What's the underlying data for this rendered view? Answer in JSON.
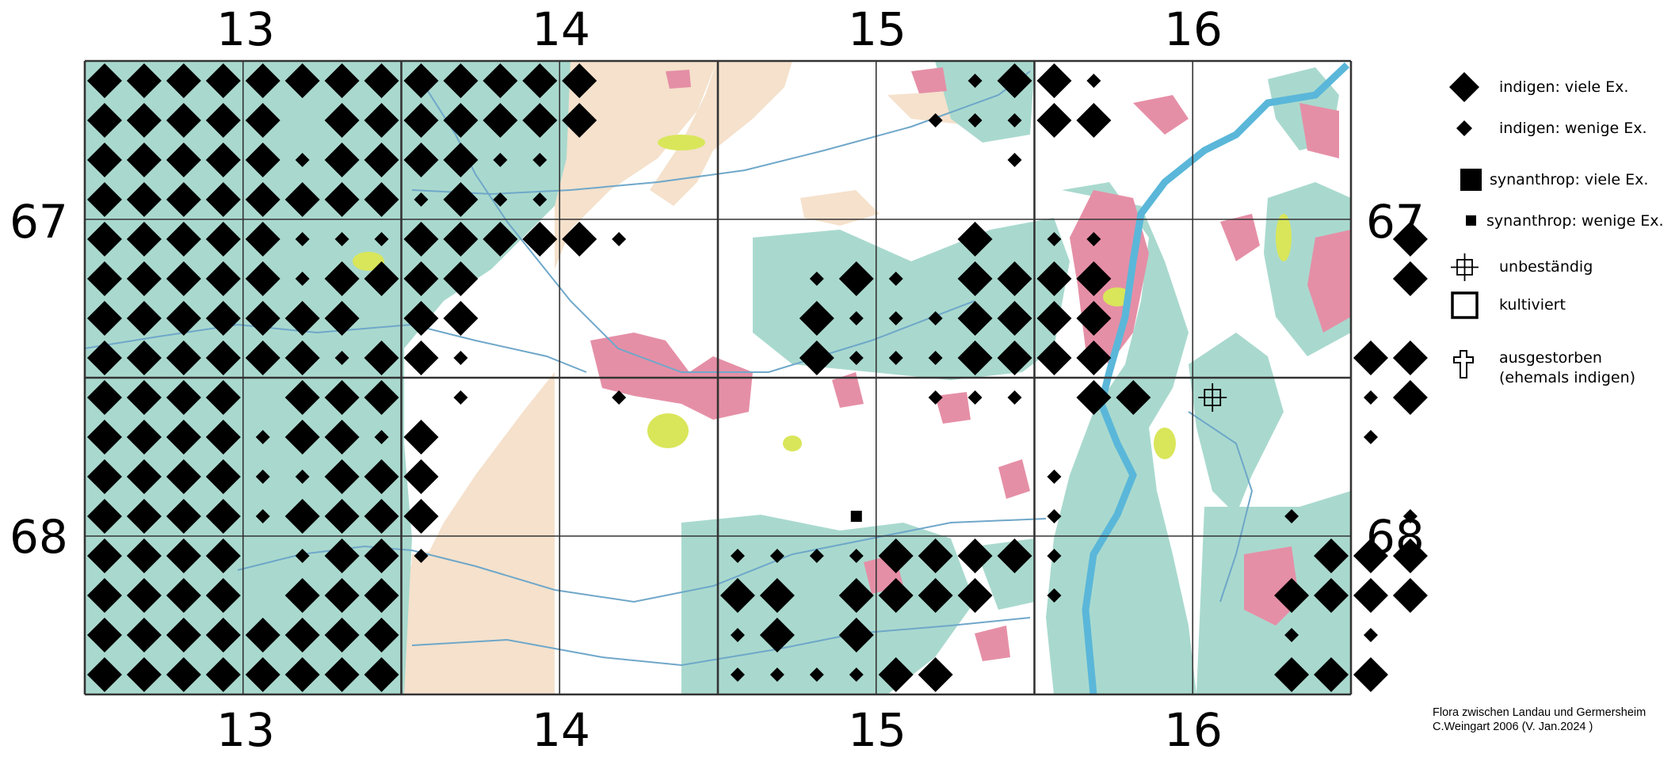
{
  "map": {
    "columns": [
      "13",
      "14",
      "15",
      "16"
    ],
    "rows": [
      "67",
      "68"
    ],
    "colors": {
      "forest": "#a9d9ce",
      "settlement": "#e58fa6",
      "fields": "#f5e1cc",
      "meadow": "#d9e65a",
      "water_area": "#b8e1d6",
      "river": "#5ab7d9",
      "grid": "#333333",
      "symbol": "#000000"
    },
    "occurrences": [
      {
        "type": "diamond-large",
        "cells": [
          [
            0,
            0
          ],
          [
            0,
            1
          ],
          [
            0,
            2
          ],
          [
            0,
            3
          ],
          [
            0,
            4
          ],
          [
            0,
            5
          ],
          [
            0,
            6
          ],
          [
            0,
            7
          ],
          [
            1,
            0
          ],
          [
            1,
            1
          ],
          [
            1,
            2
          ],
          [
            1,
            3
          ],
          [
            1,
            4
          ],
          [
            1,
            6
          ],
          [
            1,
            7
          ],
          [
            2,
            0
          ],
          [
            2,
            1
          ],
          [
            2,
            2
          ],
          [
            2,
            3
          ],
          [
            2,
            4
          ],
          [
            2,
            6
          ],
          [
            2,
            7
          ],
          [
            3,
            0
          ],
          [
            3,
            1
          ],
          [
            3,
            2
          ],
          [
            3,
            3
          ],
          [
            3,
            4
          ],
          [
            3,
            5
          ],
          [
            3,
            6
          ],
          [
            3,
            7
          ],
          [
            4,
            0
          ],
          [
            4,
            1
          ],
          [
            4,
            2
          ],
          [
            4,
            3
          ],
          [
            4,
            4
          ],
          [
            5,
            0
          ],
          [
            5,
            1
          ],
          [
            5,
            2
          ],
          [
            5,
            3
          ],
          [
            5,
            4
          ],
          [
            5,
            6
          ],
          [
            5,
            7
          ],
          [
            6,
            0
          ],
          [
            6,
            1
          ],
          [
            6,
            2
          ],
          [
            6,
            3
          ],
          [
            6,
            4
          ],
          [
            6,
            5
          ],
          [
            6,
            6
          ],
          [
            7,
            0
          ],
          [
            7,
            1
          ],
          [
            7,
            2
          ],
          [
            7,
            3
          ],
          [
            7,
            4
          ],
          [
            7,
            5
          ],
          [
            7,
            7
          ],
          [
            8,
            0
          ],
          [
            8,
            1
          ],
          [
            8,
            2
          ],
          [
            8,
            3
          ],
          [
            8,
            5
          ],
          [
            8,
            6
          ],
          [
            8,
            7
          ],
          [
            9,
            0
          ],
          [
            9,
            1
          ],
          [
            9,
            2
          ],
          [
            9,
            3
          ],
          [
            9,
            5
          ],
          [
            9,
            6
          ],
          [
            10,
            0
          ],
          [
            10,
            1
          ],
          [
            10,
            2
          ],
          [
            10,
            3
          ],
          [
            10,
            6
          ],
          [
            10,
            7
          ],
          [
            11,
            0
          ],
          [
            11,
            1
          ],
          [
            11,
            2
          ],
          [
            11,
            3
          ],
          [
            11,
            5
          ],
          [
            11,
            6
          ],
          [
            11,
            7
          ],
          [
            12,
            0
          ],
          [
            12,
            1
          ],
          [
            12,
            2
          ],
          [
            12,
            3
          ],
          [
            12,
            6
          ],
          [
            12,
            7
          ],
          [
            13,
            0
          ],
          [
            13,
            1
          ],
          [
            13,
            2
          ],
          [
            13,
            3
          ],
          [
            13,
            5
          ],
          [
            13,
            6
          ],
          [
            13,
            7
          ],
          [
            14,
            0
          ],
          [
            14,
            1
          ],
          [
            14,
            2
          ],
          [
            14,
            3
          ],
          [
            14,
            4
          ],
          [
            14,
            5
          ],
          [
            14,
            6
          ],
          [
            14,
            7
          ],
          [
            15,
            0
          ],
          [
            15,
            1
          ],
          [
            15,
            2
          ],
          [
            15,
            3
          ],
          [
            15,
            4
          ],
          [
            15,
            5
          ],
          [
            15,
            6
          ],
          [
            15,
            7
          ],
          [
            0,
            8
          ],
          [
            0,
            9
          ],
          [
            0,
            10
          ],
          [
            0,
            11
          ],
          [
            0,
            12
          ],
          [
            1,
            8
          ],
          [
            1,
            9
          ],
          [
            1,
            10
          ],
          [
            1,
            11
          ],
          [
            1,
            12
          ],
          [
            2,
            8
          ],
          [
            2,
            9
          ],
          [
            3,
            9
          ],
          [
            4,
            8
          ],
          [
            4,
            9
          ],
          [
            4,
            10
          ],
          [
            4,
            11
          ],
          [
            4,
            12
          ],
          [
            5,
            8
          ],
          [
            5,
            9
          ],
          [
            6,
            8
          ],
          [
            6,
            9
          ],
          [
            7,
            8
          ],
          [
            9,
            8
          ],
          [
            10,
            8
          ],
          [
            11,
            8
          ],
          [
            0,
            23
          ],
          [
            0,
            24
          ],
          [
            1,
            24
          ],
          [
            1,
            25
          ],
          [
            4,
            22
          ],
          [
            4,
            33
          ],
          [
            5,
            19
          ],
          [
            5,
            22
          ],
          [
            5,
            23
          ],
          [
            5,
            24
          ],
          [
            5,
            25
          ],
          [
            5,
            33
          ],
          [
            6,
            18
          ],
          [
            6,
            22
          ],
          [
            6,
            23
          ],
          [
            6,
            24
          ],
          [
            6,
            25
          ],
          [
            7,
            18
          ],
          [
            7,
            22
          ],
          [
            7,
            23
          ],
          [
            7,
            24
          ],
          [
            7,
            25
          ],
          [
            7,
            32
          ],
          [
            7,
            33
          ],
          [
            8,
            25
          ],
          [
            8,
            26
          ],
          [
            8,
            33
          ],
          [
            12,
            20
          ],
          [
            12,
            21
          ],
          [
            12,
            22
          ],
          [
            12,
            23
          ],
          [
            12,
            31
          ],
          [
            12,
            32
          ],
          [
            12,
            33
          ],
          [
            13,
            16
          ],
          [
            13,
            17
          ],
          [
            13,
            19
          ],
          [
            13,
            20
          ],
          [
            13,
            21
          ],
          [
            13,
            22
          ],
          [
            13,
            33
          ],
          [
            13,
            30
          ],
          [
            13,
            31
          ],
          [
            13,
            32
          ],
          [
            14,
            17
          ],
          [
            14,
            19
          ],
          [
            15,
            20
          ],
          [
            15,
            21
          ],
          [
            15,
            30
          ],
          [
            15,
            31
          ],
          [
            15,
            32
          ]
        ]
      },
      {
        "type": "diamond-small",
        "cells": [
          [
            2,
            5
          ],
          [
            3,
            5
          ],
          [
            4,
            5
          ],
          [
            4,
            6
          ],
          [
            4,
            7
          ],
          [
            5,
            5
          ],
          [
            6,
            5
          ],
          [
            7,
            5
          ],
          [
            7,
            6
          ],
          [
            9,
            4
          ],
          [
            9,
            7
          ],
          [
            10,
            4
          ],
          [
            10,
            5
          ],
          [
            11,
            4
          ],
          [
            12,
            5
          ],
          [
            2,
            10
          ],
          [
            2,
            11
          ],
          [
            3,
            8
          ],
          [
            3,
            10
          ],
          [
            3,
            11
          ],
          [
            4,
            13
          ],
          [
            5,
            8
          ],
          [
            6,
            8
          ],
          [
            7,
            9
          ],
          [
            8,
            9
          ],
          [
            8,
            13
          ],
          [
            9,
            8
          ],
          [
            12,
            8
          ],
          [
            0,
            22
          ],
          [
            0,
            25
          ],
          [
            1,
            21
          ],
          [
            1,
            22
          ],
          [
            1,
            23
          ],
          [
            2,
            23
          ],
          [
            4,
            24
          ],
          [
            4,
            25
          ],
          [
            5,
            18
          ],
          [
            5,
            20
          ],
          [
            6,
            20
          ],
          [
            6,
            21
          ],
          [
            6,
            19
          ],
          [
            7,
            19
          ],
          [
            7,
            20
          ],
          [
            7,
            21
          ],
          [
            8,
            21
          ],
          [
            8,
            22
          ],
          [
            8,
            23
          ],
          [
            8,
            32
          ],
          [
            9,
            32
          ],
          [
            10,
            24
          ],
          [
            11,
            24
          ],
          [
            11,
            30
          ],
          [
            11,
            33
          ],
          [
            12,
            16
          ],
          [
            12,
            17
          ],
          [
            12,
            18
          ],
          [
            12,
            19
          ],
          [
            12,
            24
          ],
          [
            13,
            24
          ],
          [
            14,
            16
          ],
          [
            14,
            32
          ],
          [
            14,
            30
          ],
          [
            15,
            16
          ],
          [
            15,
            17
          ],
          [
            15,
            18
          ],
          [
            15,
            19
          ]
        ]
      },
      {
        "type": "square-small",
        "cells": [
          [
            11,
            19
          ]
        ]
      },
      {
        "type": "unbestaendig",
        "cells": [
          [
            8,
            28
          ]
        ]
      }
    ]
  },
  "legend": {
    "items": [
      {
        "symbol": "diamond-large",
        "label": "indigen: viele Ex."
      },
      {
        "symbol": "diamond-small",
        "label": "indigen: wenige Ex."
      },
      {
        "symbol": "square-large",
        "label": "synanthrop: viele Ex."
      },
      {
        "symbol": "square-small",
        "label": "synanthrop: wenige Ex."
      },
      {
        "symbol": "unbestaendig",
        "label": "unbeständig"
      },
      {
        "symbol": "kultiviert",
        "label": "kultiviert"
      },
      {
        "symbol": "cross-outline",
        "label": "ausgestorben",
        "label2": "(ehemals indigen)"
      }
    ]
  },
  "credits": {
    "line1": "Flora zwischen Landau und Germersheim",
    "line2": "C.Weingart 2006 (V. Jan.2024 )"
  }
}
